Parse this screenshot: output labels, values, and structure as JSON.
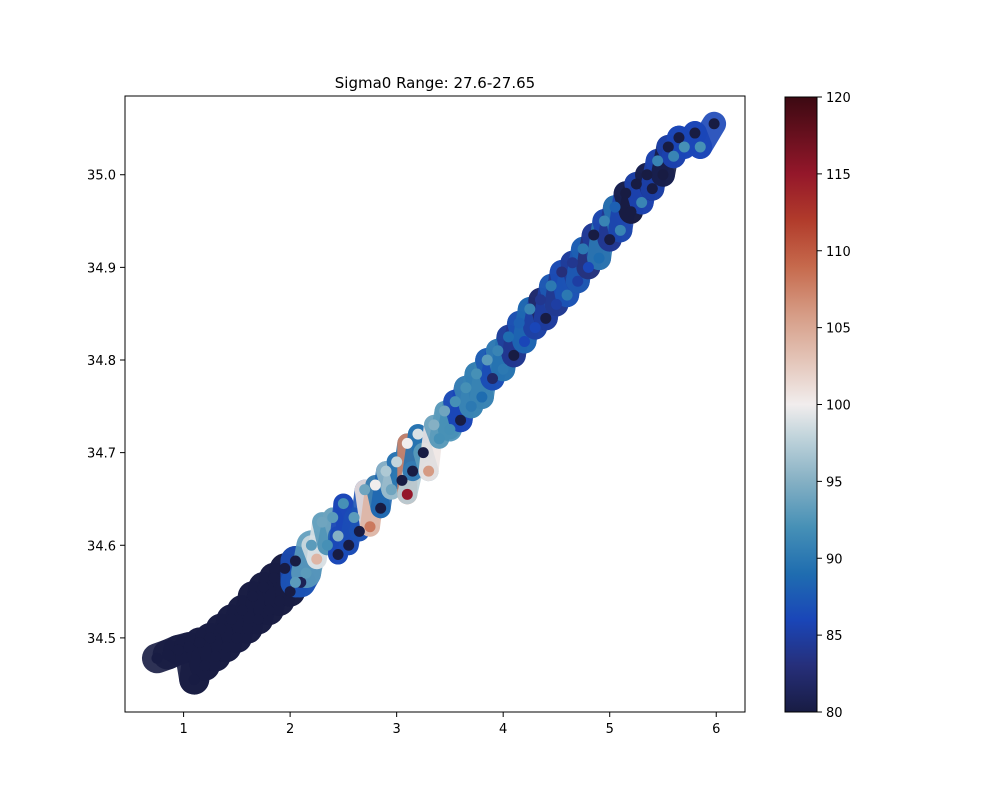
{
  "chart_data": {
    "type": "scatter",
    "title": "Sigma0 Range: 27.6-27.65",
    "xlabel": "",
    "ylabel": "",
    "xlim": [
      0.45,
      6.27
    ],
    "ylim": [
      34.42,
      35.085
    ],
    "x_ticks": [
      1,
      2,
      3,
      4,
      5,
      6
    ],
    "y_ticks": [
      34.5,
      34.6,
      34.7,
      34.8,
      34.9,
      35.0
    ],
    "x_tick_labels": [
      "1",
      "2",
      "3",
      "4",
      "5",
      "6"
    ],
    "y_tick_labels": [
      "34.5",
      "34.6",
      "34.7",
      "34.8",
      "34.9",
      "35.0"
    ],
    "grid": false,
    "legend": "none",
    "colorbar": {
      "range": [
        80,
        120
      ],
      "ticks": [
        80,
        85,
        90,
        95,
        100,
        105,
        110,
        115,
        120
      ],
      "tick_labels": [
        "80",
        "85",
        "90",
        "95",
        "100",
        "105",
        "110",
        "115",
        "120"
      ],
      "colormap": "balance",
      "stops": [
        {
          "v": 80,
          "color": "#181c43"
        },
        {
          "v": 83,
          "color": "#262f7a"
        },
        {
          "v": 86,
          "color": "#1a46b8"
        },
        {
          "v": 89,
          "color": "#1f6db0"
        },
        {
          "v": 92,
          "color": "#4690b6"
        },
        {
          "v": 95,
          "color": "#85b0c4"
        },
        {
          "v": 98,
          "color": "#c3d5dc"
        },
        {
          "v": 100,
          "color": "#f1eded"
        },
        {
          "v": 103,
          "color": "#e3c3b6"
        },
        {
          "v": 106,
          "color": "#d59a83"
        },
        {
          "v": 109,
          "color": "#c6694c"
        },
        {
          "v": 112,
          "color": "#b13b2b"
        },
        {
          "v": 115,
          "color": "#94172a"
        },
        {
          "v": 120,
          "color": "#3c0912"
        }
      ]
    },
    "points": [
      {
        "x": 0.75,
        "y": 34.478,
        "c": 80
      },
      {
        "x": 0.85,
        "y": 34.482,
        "c": 80
      },
      {
        "x": 0.95,
        "y": 34.487,
        "c": 80
      },
      {
        "x": 1.05,
        "y": 34.49,
        "c": 80
      },
      {
        "x": 1.1,
        "y": 34.455,
        "c": 80
      },
      {
        "x": 1.15,
        "y": 34.495,
        "c": 80
      },
      {
        "x": 1.2,
        "y": 34.47,
        "c": 80
      },
      {
        "x": 1.25,
        "y": 34.5,
        "c": 80
      },
      {
        "x": 1.3,
        "y": 34.48,
        "c": 80
      },
      {
        "x": 1.35,
        "y": 34.51,
        "c": 80
      },
      {
        "x": 1.4,
        "y": 34.49,
        "c": 80
      },
      {
        "x": 1.45,
        "y": 34.52,
        "c": 80
      },
      {
        "x": 1.5,
        "y": 34.5,
        "c": 80
      },
      {
        "x": 1.55,
        "y": 34.53,
        "c": 80
      },
      {
        "x": 1.6,
        "y": 34.51,
        "c": 80
      },
      {
        "x": 1.65,
        "y": 34.545,
        "c": 80
      },
      {
        "x": 1.7,
        "y": 34.52,
        "c": 80
      },
      {
        "x": 1.75,
        "y": 34.555,
        "c": 80
      },
      {
        "x": 1.8,
        "y": 34.53,
        "c": 80
      },
      {
        "x": 1.85,
        "y": 34.565,
        "c": 80
      },
      {
        "x": 1.9,
        "y": 34.54,
        "c": 80
      },
      {
        "x": 1.95,
        "y": 34.575,
        "c": 80
      },
      {
        "x": 2.0,
        "y": 34.55,
        "c": 80
      },
      {
        "x": 2.05,
        "y": 34.583,
        "c": 80
      },
      {
        "x": 2.1,
        "y": 34.56,
        "c": 81
      },
      {
        "x": 2.05,
        "y": 34.56,
        "c": 93
      },
      {
        "x": 2.15,
        "y": 34.57,
        "c": 93
      },
      {
        "x": 2.2,
        "y": 34.6,
        "c": 93
      },
      {
        "x": 2.25,
        "y": 34.585,
        "c": 104
      },
      {
        "x": 2.3,
        "y": 34.625,
        "c": 94
      },
      {
        "x": 2.35,
        "y": 34.6,
        "c": 92
      },
      {
        "x": 2.4,
        "y": 34.63,
        "c": 93
      },
      {
        "x": 2.45,
        "y": 34.61,
        "c": 95
      },
      {
        "x": 2.5,
        "y": 34.645,
        "c": 92
      },
      {
        "x": 2.45,
        "y": 34.59,
        "c": 80
      },
      {
        "x": 2.55,
        "y": 34.6,
        "c": 80
      },
      {
        "x": 2.6,
        "y": 34.63,
        "c": 93
      },
      {
        "x": 2.65,
        "y": 34.615,
        "c": 80
      },
      {
        "x": 2.7,
        "y": 34.66,
        "c": 94
      },
      {
        "x": 2.75,
        "y": 34.62,
        "c": 108
      },
      {
        "x": 2.8,
        "y": 34.665,
        "c": 100
      },
      {
        "x": 2.85,
        "y": 34.64,
        "c": 80
      },
      {
        "x": 2.9,
        "y": 34.68,
        "c": 97
      },
      {
        "x": 2.95,
        "y": 34.66,
        "c": 94
      },
      {
        "x": 3.0,
        "y": 34.69,
        "c": 98
      },
      {
        "x": 3.05,
        "y": 34.67,
        "c": 80
      },
      {
        "x": 3.1,
        "y": 34.71,
        "c": 100
      },
      {
        "x": 3.1,
        "y": 34.655,
        "c": 115
      },
      {
        "x": 3.15,
        "y": 34.68,
        "c": 80
      },
      {
        "x": 3.2,
        "y": 34.72,
        "c": 99
      },
      {
        "x": 3.25,
        "y": 34.7,
        "c": 80
      },
      {
        "x": 3.3,
        "y": 34.68,
        "c": 106
      },
      {
        "x": 3.35,
        "y": 34.73,
        "c": 95
      },
      {
        "x": 3.4,
        "y": 34.715,
        "c": 92
      },
      {
        "x": 3.45,
        "y": 34.745,
        "c": 94
      },
      {
        "x": 3.5,
        "y": 34.725,
        "c": 92
      },
      {
        "x": 3.55,
        "y": 34.755,
        "c": 92
      },
      {
        "x": 3.6,
        "y": 34.735,
        "c": 80
      },
      {
        "x": 3.65,
        "y": 34.77,
        "c": 92
      },
      {
        "x": 3.7,
        "y": 34.75,
        "c": 90
      },
      {
        "x": 3.75,
        "y": 34.785,
        "c": 92
      },
      {
        "x": 3.8,
        "y": 34.76,
        "c": 89
      },
      {
        "x": 3.85,
        "y": 34.8,
        "c": 93
      },
      {
        "x": 3.9,
        "y": 34.78,
        "c": 82
      },
      {
        "x": 3.95,
        "y": 34.81,
        "c": 91
      },
      {
        "x": 4.0,
        "y": 34.79,
        "c": 90
      },
      {
        "x": 4.05,
        "y": 34.825,
        "c": 89
      },
      {
        "x": 4.1,
        "y": 34.805,
        "c": 80
      },
      {
        "x": 4.15,
        "y": 34.84,
        "c": 88
      },
      {
        "x": 4.2,
        "y": 34.82,
        "c": 86
      },
      {
        "x": 4.25,
        "y": 34.855,
        "c": 91
      },
      {
        "x": 4.3,
        "y": 34.835,
        "c": 86
      },
      {
        "x": 4.35,
        "y": 34.865,
        "c": 84
      },
      {
        "x": 4.4,
        "y": 34.845,
        "c": 80
      },
      {
        "x": 4.45,
        "y": 34.88,
        "c": 90
      },
      {
        "x": 4.5,
        "y": 34.86,
        "c": 85
      },
      {
        "x": 4.55,
        "y": 34.895,
        "c": 83
      },
      {
        "x": 4.6,
        "y": 34.87,
        "c": 90
      },
      {
        "x": 4.65,
        "y": 34.905,
        "c": 84
      },
      {
        "x": 4.7,
        "y": 34.885,
        "c": 85
      },
      {
        "x": 4.75,
        "y": 34.92,
        "c": 90
      },
      {
        "x": 4.8,
        "y": 34.9,
        "c": 86
      },
      {
        "x": 4.85,
        "y": 34.935,
        "c": 80
      },
      {
        "x": 4.9,
        "y": 34.91,
        "c": 89
      },
      {
        "x": 4.95,
        "y": 34.95,
        "c": 91
      },
      {
        "x": 5.0,
        "y": 34.93,
        "c": 80
      },
      {
        "x": 5.05,
        "y": 34.965,
        "c": 88
      },
      {
        "x": 5.1,
        "y": 34.94,
        "c": 91
      },
      {
        "x": 5.15,
        "y": 34.98,
        "c": 80
      },
      {
        "x": 5.2,
        "y": 34.96,
        "c": 80
      },
      {
        "x": 5.25,
        "y": 34.99,
        "c": 80
      },
      {
        "x": 5.3,
        "y": 34.97,
        "c": 91
      },
      {
        "x": 5.35,
        "y": 35.0,
        "c": 80
      },
      {
        "x": 5.4,
        "y": 34.985,
        "c": 80
      },
      {
        "x": 5.45,
        "y": 35.015,
        "c": 91
      },
      {
        "x": 5.5,
        "y": 35.0,
        "c": 80
      },
      {
        "x": 5.55,
        "y": 35.03,
        "c": 80
      },
      {
        "x": 5.6,
        "y": 35.02,
        "c": 91
      },
      {
        "x": 5.65,
        "y": 35.04,
        "c": 80
      },
      {
        "x": 5.7,
        "y": 35.03,
        "c": 92
      },
      {
        "x": 5.8,
        "y": 35.045,
        "c": 80
      },
      {
        "x": 5.85,
        "y": 35.03,
        "c": 92
      },
      {
        "x": 5.98,
        "y": 35.055,
        "c": 80
      }
    ]
  }
}
